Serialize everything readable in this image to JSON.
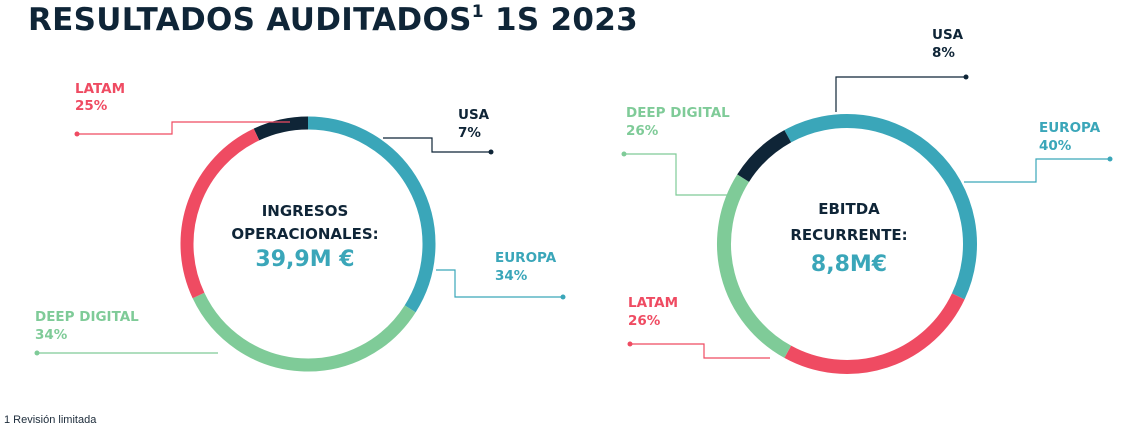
{
  "title": "RESULTADOS AUDITADOS",
  "title_sup": "1",
  "title_suffix": " 1S 2023",
  "colors": {
    "usa": "#0f2537",
    "europa": "#3aa6b9",
    "latam": "#ef4b62",
    "deep_digital": "#7fcb98",
    "title": "#0f2537"
  },
  "chart_data": [
    {
      "type": "pie",
      "center_title": [
        "INGRESOS",
        "OPERACIONALES:"
      ],
      "center_value": "39,9M €",
      "slices": [
        {
          "label": "USA",
          "value": 7,
          "value_label": "7%",
          "color": "#0f2537"
        },
        {
          "label": "EUROPA",
          "value": 34,
          "value_label": "34%",
          "color": "#3aa6b9"
        },
        {
          "label": "DEEP DIGITAL",
          "value": 34,
          "value_label": "34%",
          "color": "#7fcb98"
        },
        {
          "label": "LATAM",
          "value": 25,
          "value_label": "25%",
          "color": "#ef4b62"
        }
      ]
    },
    {
      "type": "pie",
      "center_title": [
        "EBITDA",
        "RECURRENTE:"
      ],
      "center_value": "8,8M€",
      "slices": [
        {
          "label": "EUROPA",
          "value": 40,
          "value_label": "40%",
          "color": "#3aa6b9"
        },
        {
          "label": "LATAM",
          "value": 26,
          "value_label": "26%",
          "color": "#ef4b62"
        },
        {
          "label": "DEEP DIGITAL",
          "value": 26,
          "value_label": "26%",
          "color": "#7fcb98"
        },
        {
          "label": "USA",
          "value": 8,
          "value_label": "8%",
          "color": "#0f2537"
        }
      ]
    }
  ],
  "footnote": "1 Revisión limitada"
}
